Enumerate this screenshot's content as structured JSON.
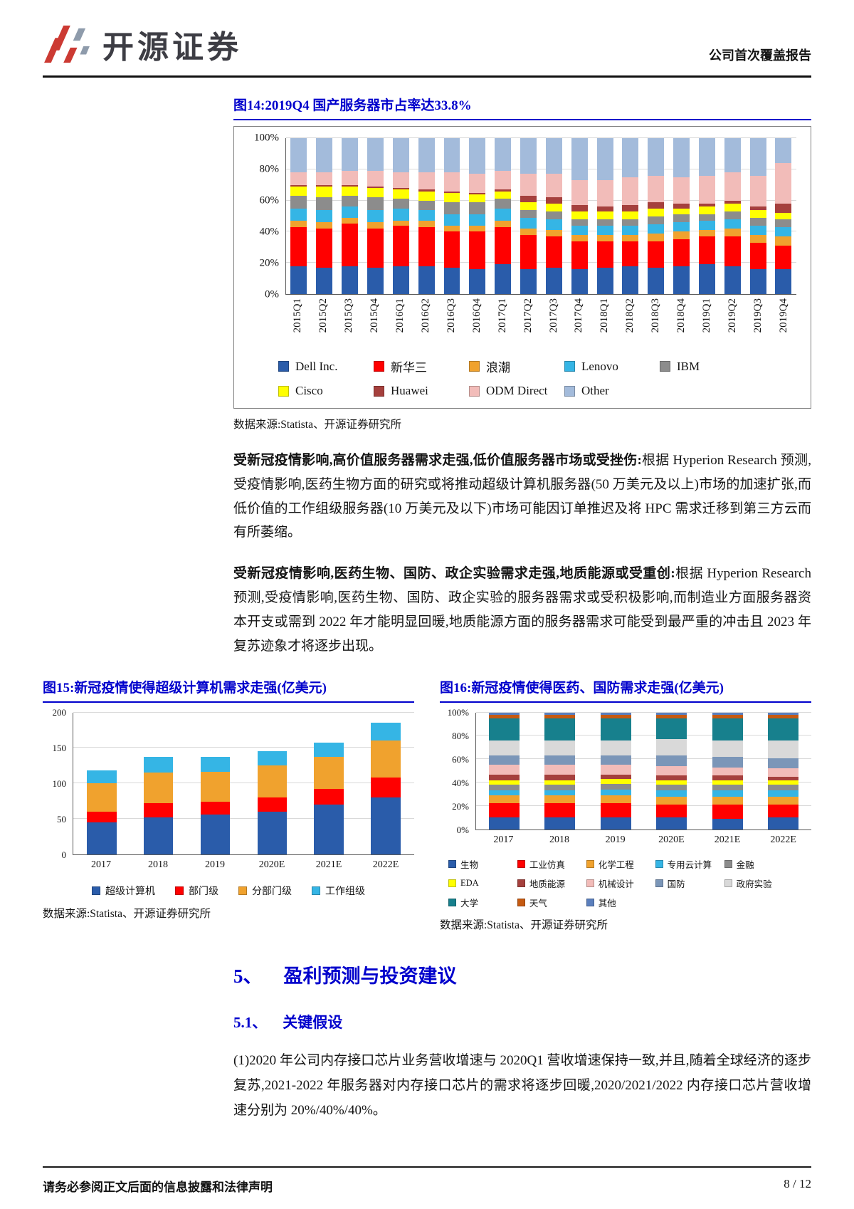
{
  "header": {
    "brand": "开源证券",
    "report_type": "公司首次覆盖报告"
  },
  "figures": {
    "fig14": {
      "title": "图14:2019Q4 国产服务器市占率达33.8%",
      "source": "数据来源:Statista、开源证券研究所"
    },
    "fig15": {
      "title": "图15:新冠疫情使得超级计算机需求走强(亿美元)",
      "source": "数据来源:Statista、开源证券研究所"
    },
    "fig16": {
      "title": "图16:新冠疫情使得医药、国防需求走强(亿美元)",
      "source": "数据来源:Statista、开源证券研究所"
    }
  },
  "paragraphs": {
    "p1_bold": "受新冠疫情影响,高价值服务器需求走强,低价值服务器市场或受挫伤:",
    "p1_text": "根据 Hyperion Research 预测,受疫情影响,医药生物方面的研究或将推动超级计算机服务器(50 万美元及以上)市场的加速扩张,而低价值的工作组级服务器(10 万美元及以下)市场可能因订单推迟及将 HPC 需求迁移到第三方云而有所萎缩。",
    "p2_bold": "受新冠疫情影响,医药生物、国防、政企实验需求走强,地质能源或受重创:",
    "p2_text": "根据 Hyperion Research 预测,受疫情影响,医药生物、国防、政企实验的服务器需求或受积极影响,而制造业方面服务器资本开支或需到 2022 年才能明显回暖,地质能源方面的服务器需求可能受到最严重的冲击且 2023 年复苏迹象才将逐步出现。"
  },
  "sections": {
    "h1_num": "5、",
    "h1_title": "盈利预测与投资建议",
    "h2_num": "5.1、",
    "h2_title": "关键假设",
    "body": "(1)2020 年公司内存接口芯片业务营收增速与 2020Q1 营收增速保持一致,并且,随着全球经济的逐步复苏,2021-2022 年服务器对内存接口芯片的需求将逐步回暖,2020/2021/2022 内存接口芯片营收增速分别为 20%/40%/40%。"
  },
  "footer": {
    "disclaimer": "请务必参阅正文后面的信息披露和法律声明",
    "page": "8 / 12"
  },
  "chart_data": [
    {
      "id": "fig14",
      "type": "bar",
      "stacked": true,
      "percent": true,
      "title": "2019Q4 国产服务器市占率达33.8%",
      "categories": [
        "2015Q1",
        "2015Q2",
        "2015Q3",
        "2015Q4",
        "2016Q1",
        "2016Q2",
        "2016Q3",
        "2016Q4",
        "2017Q1",
        "2017Q2",
        "2017Q3",
        "2017Q4",
        "2018Q1",
        "2018Q2",
        "2018Q3",
        "2018Q4",
        "2019Q1",
        "2019Q2",
        "2019Q3",
        "2019Q4"
      ],
      "series": [
        {
          "name": "Dell Inc.",
          "color": "#2a5caa",
          "values": [
            18,
            17,
            18,
            17,
            18,
            18,
            17,
            16,
            19,
            16,
            17,
            16,
            17,
            18,
            17,
            18,
            19,
            18,
            16,
            16
          ]
        },
        {
          "name": "新华三",
          "color": "#ff0000",
          "values": [
            25,
            25,
            27,
            25,
            26,
            25,
            23,
            24,
            24,
            22,
            20,
            18,
            17,
            16,
            17,
            17,
            18,
            19,
            17,
            15
          ]
        },
        {
          "name": "浪潮",
          "color": "#f0a22e",
          "values": [
            4,
            4,
            4,
            4,
            3,
            4,
            4,
            4,
            4,
            4,
            4,
            4,
            4,
            4,
            5,
            5,
            4,
            5,
            5,
            6
          ]
        },
        {
          "name": "Lenovo",
          "color": "#35b5e5",
          "values": [
            8,
            8,
            7,
            8,
            8,
            7,
            7,
            7,
            8,
            7,
            7,
            6,
            6,
            6,
            6,
            6,
            6,
            6,
            6,
            6
          ]
        },
        {
          "name": "IBM",
          "color": "#8c8c8c",
          "values": [
            8,
            8,
            7,
            8,
            6,
            6,
            8,
            8,
            6,
            5,
            5,
            4,
            4,
            4,
            5,
            5,
            4,
            5,
            5,
            5
          ]
        },
        {
          "name": "Cisco",
          "color": "#ffff00",
          "values": [
            6,
            7,
            6,
            6,
            6,
            6,
            6,
            5,
            5,
            5,
            5,
            5,
            5,
            5,
            5,
            4,
            5,
            5,
            5,
            4
          ]
        },
        {
          "name": "Huawei",
          "color": "#a5403d",
          "values": [
            1,
            1,
            1,
            1,
            1,
            1,
            1,
            1,
            1,
            4,
            4,
            4,
            3,
            4,
            4,
            3,
            2,
            2,
            2,
            6
          ]
        },
        {
          "name": "ODM Direct",
          "color": "#f2bcb9",
          "values": [
            8,
            8,
            9,
            10,
            10,
            11,
            12,
            12,
            12,
            14,
            15,
            16,
            17,
            18,
            17,
            17,
            18,
            18,
            20,
            26
          ]
        },
        {
          "name": "Other",
          "color": "#a3bbdb",
          "values": [
            22,
            22,
            21,
            21,
            22,
            22,
            22,
            23,
            21,
            23,
            23,
            27,
            27,
            25,
            24,
            25,
            24,
            22,
            24,
            16
          ]
        }
      ],
      "ylim": [
        0,
        100
      ],
      "yticks": [
        "0%",
        "20%",
        "40%",
        "60%",
        "80%",
        "100%"
      ],
      "rotated_labels": true,
      "legend_rows": [
        5,
        4
      ],
      "legend_position": "bottom"
    },
    {
      "id": "fig15",
      "type": "bar",
      "stacked": true,
      "percent": false,
      "title": "新冠疫情使得超级计算机需求走强(亿美元)",
      "categories": [
        "2017",
        "2018",
        "2019",
        "2020E",
        "2021E",
        "2022E"
      ],
      "series": [
        {
          "name": "超级计算机",
          "color": "#2a5caa",
          "values": [
            45,
            52,
            56,
            60,
            70,
            80
          ]
        },
        {
          "name": "部门级",
          "color": "#ff0000",
          "values": [
            15,
            20,
            18,
            20,
            22,
            28
          ]
        },
        {
          "name": "分部门级",
          "color": "#f0a22e",
          "values": [
            40,
            43,
            42,
            45,
            45,
            52
          ]
        },
        {
          "name": "工作组级",
          "color": "#35b5e5",
          "values": [
            18,
            22,
            21,
            20,
            20,
            25
          ]
        }
      ],
      "ylim": [
        0,
        200
      ],
      "yticks": [
        "0",
        "50",
        "100",
        "150",
        "200"
      ],
      "rotated_labels": false,
      "legend_rows": [
        4
      ],
      "legend_position": "bottom"
    },
    {
      "id": "fig16",
      "type": "bar",
      "stacked": true,
      "percent": true,
      "title": "新冠疫情使得医药、国防需求走强(亿美元)",
      "categories": [
        "2017",
        "2018",
        "2019",
        "2020E",
        "2021E",
        "2022E"
      ],
      "series": [
        {
          "name": "生物",
          "color": "#2a5caa",
          "values": [
            10,
            10,
            10,
            10,
            9,
            10
          ]
        },
        {
          "name": "工业仿真",
          "color": "#ff0000",
          "values": [
            12,
            12,
            12,
            11,
            12,
            11
          ]
        },
        {
          "name": "化学工程",
          "color": "#f0a22e",
          "values": [
            7,
            7,
            7,
            7,
            7,
            7
          ]
        },
        {
          "name": "专用云计算",
          "color": "#35b5e5",
          "values": [
            4,
            4,
            5,
            5,
            5,
            5
          ]
        },
        {
          "name": "金融",
          "color": "#8c8c8c",
          "values": [
            5,
            5,
            5,
            5,
            5,
            5
          ]
        },
        {
          "name": "EDA",
          "color": "#ffff00",
          "values": [
            4,
            4,
            4,
            4,
            4,
            4
          ]
        },
        {
          "name": "地质能源",
          "color": "#a5403d",
          "values": [
            5,
            5,
            4,
            4,
            4,
            3
          ]
        },
        {
          "name": "机械设计",
          "color": "#f2bcb9",
          "values": [
            8,
            8,
            8,
            8,
            7,
            7
          ]
        },
        {
          "name": "国防",
          "color": "#7b96b8",
          "values": [
            8,
            8,
            8,
            9,
            9,
            9
          ]
        },
        {
          "name": "政府实验",
          "color": "#d9d9d9",
          "values": [
            13,
            13,
            13,
            14,
            14,
            15
          ]
        },
        {
          "name": "大学",
          "color": "#17808d",
          "values": [
            19,
            19,
            19,
            18,
            19,
            19
          ]
        },
        {
          "name": "天气",
          "color": "#c55a11",
          "values": [
            3,
            3,
            3,
            3,
            3,
            3
          ]
        },
        {
          "name": "其他",
          "color": "#5b7fbd",
          "values": [
            2,
            2,
            2,
            2,
            2,
            2
          ]
        }
      ],
      "ylim": [
        0,
        100
      ],
      "yticks": [
        "0%",
        "20%",
        "40%",
        "60%",
        "80%",
        "100%"
      ],
      "rotated_labels": false,
      "legend_rows": [
        5,
        5,
        3
      ],
      "legend_position": "bottom"
    }
  ]
}
